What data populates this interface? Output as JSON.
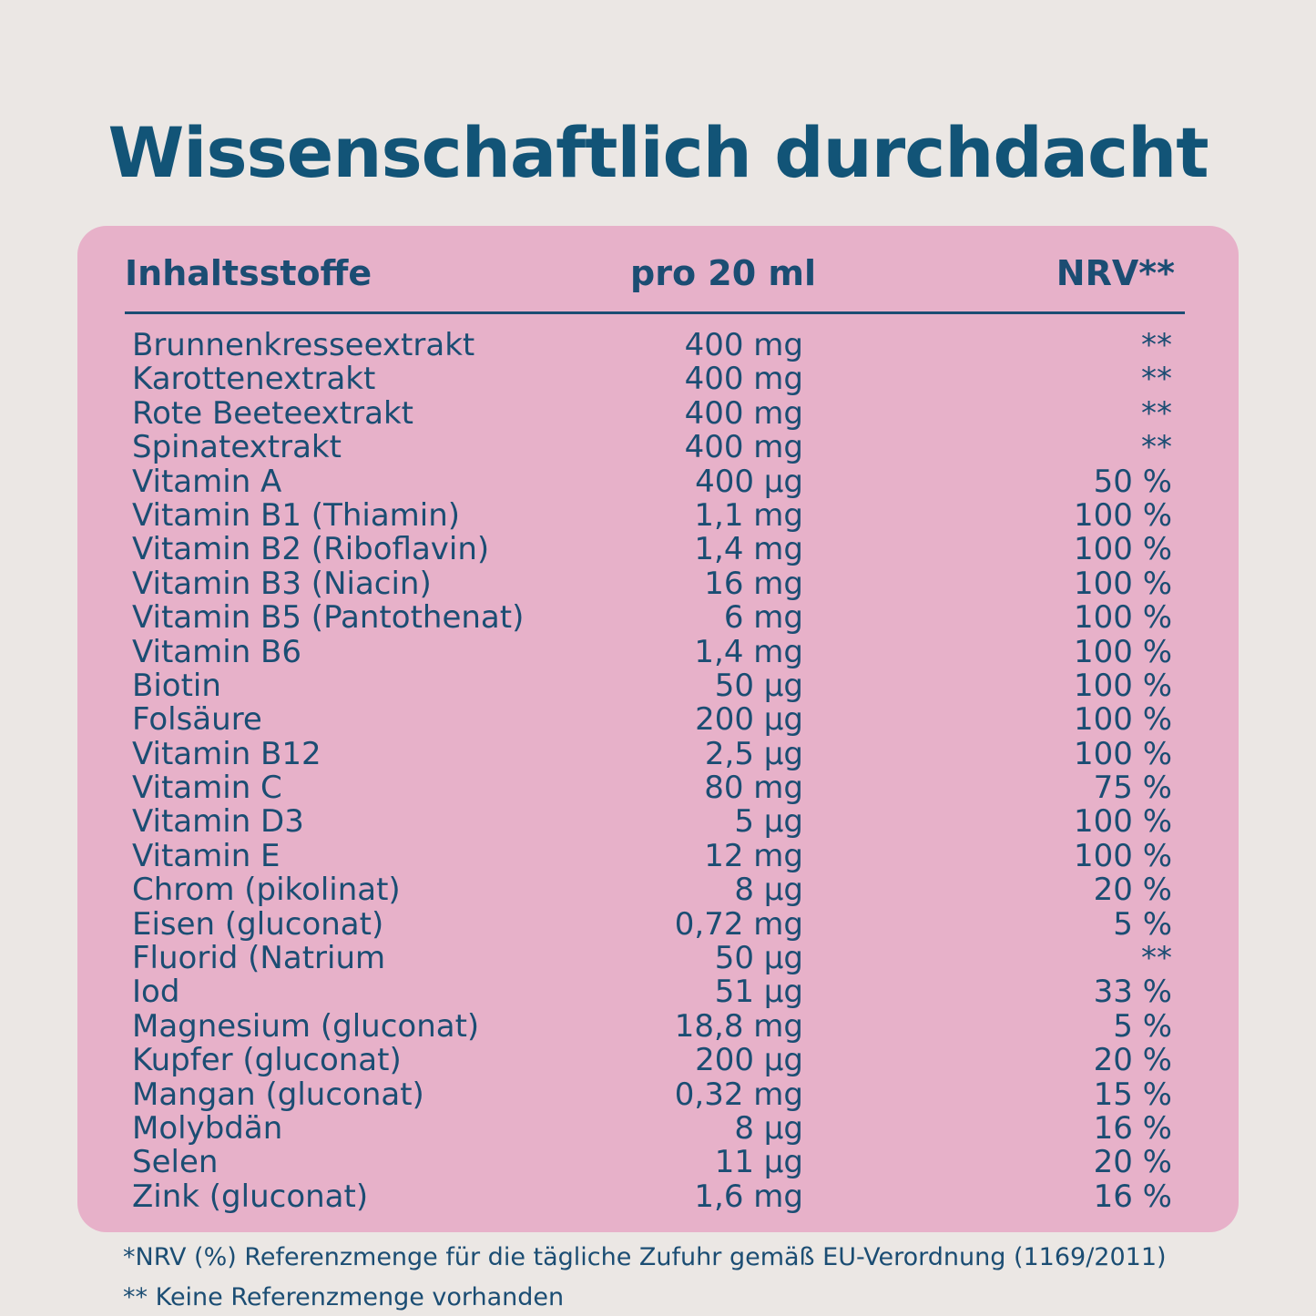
{
  "title": "Wissenschaftlich durchdacht",
  "colors": {
    "background": "#ebe7e4",
    "card": "#e7b1c9",
    "text": "#1b4d73",
    "title": "#125477"
  },
  "table": {
    "headers": {
      "ingredient": "Inhaltsstoffe",
      "amount": "pro 20 ml",
      "nrv": "NRV**"
    },
    "rows": [
      {
        "name": "Brunnenkresseextrakt",
        "amount": "400 mg",
        "nrv": "**"
      },
      {
        "name": "Karottenextrakt",
        "amount": "400 mg",
        "nrv": "**"
      },
      {
        "name": "Rote Beeteextrakt",
        "amount": "400 mg",
        "nrv": "**"
      },
      {
        "name": "Spinatextrakt",
        "amount": "400 mg",
        "nrv": "**"
      },
      {
        "name": "Vitamin A",
        "amount": "400 µg",
        "nrv": "50 %"
      },
      {
        "name": "Vitamin B1 (Thiamin)",
        "amount": "1,1 mg",
        "nrv": "100 %"
      },
      {
        "name": "Vitamin B2 (Riboflavin)",
        "amount": "1,4 mg",
        "nrv": "100 %"
      },
      {
        "name": "Vitamin B3 (Niacin)",
        "amount": "16 mg",
        "nrv": "100 %"
      },
      {
        "name": "Vitamin B5 (Pantothenat)",
        "amount": "6 mg",
        "nrv": "100 %"
      },
      {
        "name": "Vitamin B6",
        "amount": "1,4 mg",
        "nrv": "100 %"
      },
      {
        "name": "Biotin",
        "amount": "50 µg",
        "nrv": "100 %"
      },
      {
        "name": "Folsäure",
        "amount": "200 µg",
        "nrv": "100 %"
      },
      {
        "name": "Vitamin B12",
        "amount": "2,5 µg",
        "nrv": "100 %"
      },
      {
        "name": "Vitamin C",
        "amount": "80 mg",
        "nrv": "75 %"
      },
      {
        "name": "Vitamin D3",
        "amount": "5 µg",
        "nrv": "100 %"
      },
      {
        "name": "Vitamin E",
        "amount": "12 mg",
        "nrv": "100 %"
      },
      {
        "name": "Chrom (pikolinat)",
        "amount": "8 µg",
        "nrv": "20 %"
      },
      {
        "name": "Eisen (gluconat)",
        "amount": "0,72 mg",
        "nrv": "5 %"
      },
      {
        "name": "Fluorid (Natrium",
        "amount": "50 µg",
        "nrv": "**"
      },
      {
        "name": "Iod",
        "amount": "51 µg",
        "nrv": "33 %"
      },
      {
        "name": "Magnesium (gluconat)",
        "amount": "18,8 mg",
        "nrv": "5 %"
      },
      {
        "name": "Kupfer (gluconat)",
        "amount": "200 µg",
        "nrv": "20 %"
      },
      {
        "name": "Mangan (gluconat)",
        "amount": "0,32 mg",
        "nrv": "15 %"
      },
      {
        "name": "Molybdän",
        "amount": "8 µg",
        "nrv": "16 %"
      },
      {
        "name": "Selen",
        "amount": "11 µg",
        "nrv": "20 %"
      },
      {
        "name": "Zink (gluconat)",
        "amount": "1,6 mg",
        "nrv": "16 %"
      }
    ]
  },
  "footnotes": [
    "*NRV (%) Referenzmenge für die tägliche Zufuhr gemäß EU-Verordnung (1169/2011)",
    "** Keine Referenzmenge vorhanden"
  ]
}
